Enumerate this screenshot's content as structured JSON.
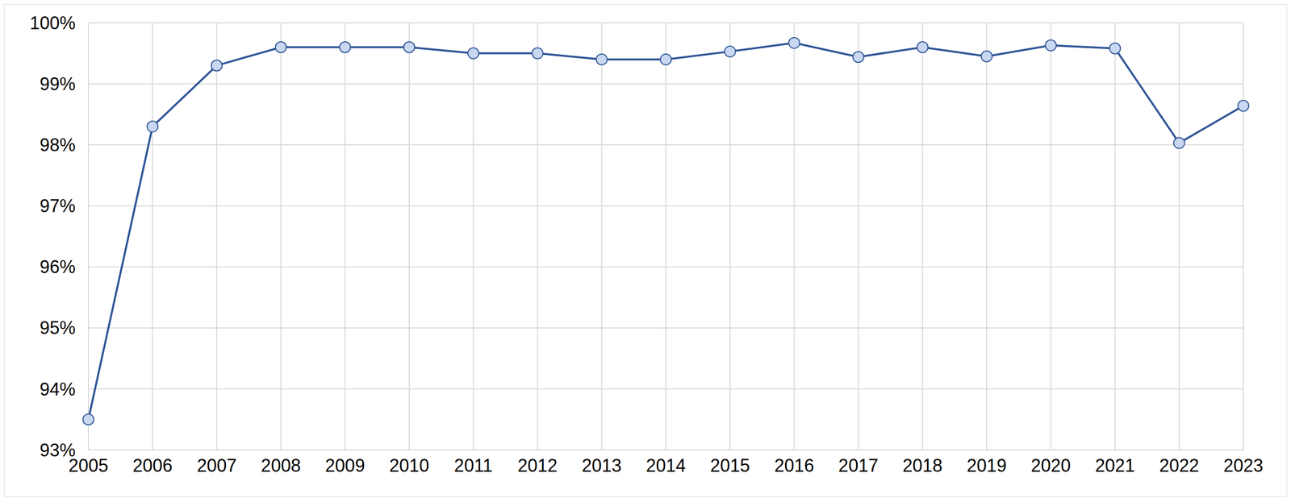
{
  "chart_data": {
    "type": "line",
    "categories": [
      "2005",
      "2006",
      "2007",
      "2008",
      "2009",
      "2010",
      "2011",
      "2012",
      "2013",
      "2014",
      "2015",
      "2016",
      "2017",
      "2018",
      "2019",
      "2020",
      "2021",
      "2022",
      "2023"
    ],
    "values": [
      93.5,
      98.3,
      99.3,
      99.6,
      99.6,
      99.6,
      99.5,
      99.5,
      99.4,
      99.4,
      99.53,
      99.67,
      99.44,
      99.6,
      99.45,
      99.63,
      99.58,
      98.03,
      98.64
    ],
    "color": "#2f5597",
    "marker": "circle",
    "ylim": [
      93,
      100
    ],
    "yticks": [
      {
        "value": 93,
        "label": "93%"
      },
      {
        "value": 94,
        "label": "94%"
      },
      {
        "value": 95,
        "label": "95%"
      },
      {
        "value": 96,
        "label": "96%"
      },
      {
        "value": 97,
        "label": "97%"
      },
      {
        "value": 98,
        "label": "98%"
      },
      {
        "value": 99,
        "label": "99%"
      },
      {
        "value": 100,
        "label": "100%"
      }
    ],
    "grid": true
  }
}
